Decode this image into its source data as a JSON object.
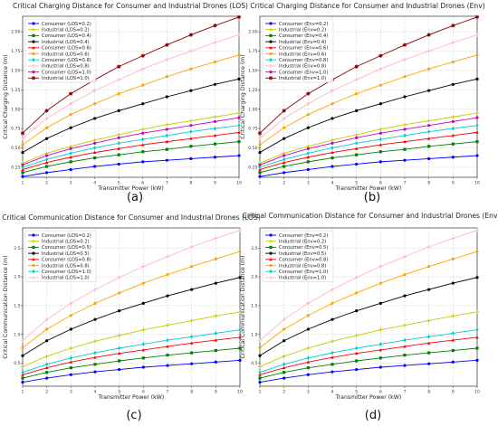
{
  "chart_data": [
    {
      "type": "line",
      "subfigure_label": "(a)",
      "title": "Critical Charging Distance for Consumer and Industrial Drones (LOS)",
      "xlabel": "Transmitter Power (kW)",
      "ylabel": "Critical Charging Distance (m)",
      "xlim": [
        1,
        10
      ],
      "ylim": [
        0.12,
        2.2
      ],
      "xticks": [
        "1",
        "2",
        "3",
        "4",
        "5",
        "6",
        "7",
        "8",
        "9",
        "10"
      ],
      "yticks": [
        "0.25",
        "0.50",
        "0.75",
        "1.00",
        "1.25",
        "1.50",
        "1.75",
        "2.00"
      ],
      "grid": true,
      "legend_position": "top-left",
      "x": [
        1,
        2,
        3,
        4,
        5,
        6,
        7,
        8,
        9,
        10
      ],
      "series": [
        {
          "name": "Consumer (LOS=0.2)",
          "color": "#0000ff",
          "marker": "circle",
          "values": [
            0.13,
            0.18,
            0.22,
            0.26,
            0.29,
            0.32,
            0.34,
            0.36,
            0.38,
            0.4
          ]
        },
        {
          "name": "Industrial (LOS=0.2)",
          "color": "#c8c800",
          "marker": "plus",
          "values": [
            0.3,
            0.43,
            0.52,
            0.6,
            0.67,
            0.74,
            0.8,
            0.85,
            0.9,
            0.95
          ]
        },
        {
          "name": "Consumer (LOS=0.4)",
          "color": "#008000",
          "marker": "square",
          "values": [
            0.18,
            0.26,
            0.32,
            0.37,
            0.41,
            0.45,
            0.48,
            0.52,
            0.55,
            0.58
          ]
        },
        {
          "name": "Industrial (LOS=0.4)",
          "color": "#000000",
          "marker": "circle",
          "values": [
            0.44,
            0.62,
            0.76,
            0.88,
            0.98,
            1.07,
            1.16,
            1.24,
            1.32,
            1.39
          ]
        },
        {
          "name": "Consumer (LOS=0.6)",
          "color": "#ff0000",
          "marker": "triangle",
          "values": [
            0.22,
            0.31,
            0.38,
            0.44,
            0.49,
            0.54,
            0.58,
            0.62,
            0.66,
            0.7
          ]
        },
        {
          "name": "Industrial (LOS=0.6)",
          "color": "#ffa500",
          "marker": "circle",
          "values": [
            0.54,
            0.76,
            0.93,
            1.07,
            1.2,
            1.31,
            1.42,
            1.52,
            1.61,
            1.7
          ]
        },
        {
          "name": "Consumer (LOS=0.8)",
          "color": "#00cccc",
          "marker": "diamond",
          "values": [
            0.25,
            0.35,
            0.43,
            0.5,
            0.56,
            0.61,
            0.66,
            0.71,
            0.75,
            0.79
          ]
        },
        {
          "name": "Industrial (LOS=0.8)",
          "color": "#ffb6c1",
          "marker": "plus",
          "values": [
            0.62,
            0.88,
            1.07,
            1.24,
            1.38,
            1.52,
            1.64,
            1.75,
            1.86,
            1.96
          ]
        },
        {
          "name": "Consumer (LOS=1.0)",
          "color": "#cc00cc",
          "marker": "circle",
          "values": [
            0.28,
            0.4,
            0.49,
            0.56,
            0.63,
            0.69,
            0.74,
            0.79,
            0.84,
            0.89
          ]
        },
        {
          "name": "Industrial (LOS=1.0)",
          "color": "#8b0000",
          "marker": "star",
          "values": [
            0.69,
            0.98,
            1.2,
            1.38,
            1.55,
            1.69,
            1.83,
            1.96,
            2.08,
            2.19
          ]
        }
      ]
    },
    {
      "type": "line",
      "subfigure_label": "(b)",
      "title": "Critical Charging Distance for Consumer and Industrial Drones (Env)",
      "xlabel": "Transmitter Power (kW)",
      "ylabel": "Critical Charging Distance (m)",
      "xlim": [
        1,
        10
      ],
      "ylim": [
        0.12,
        2.2
      ],
      "xticks": [
        "1",
        "2",
        "3",
        "4",
        "5",
        "6",
        "7",
        "8",
        "9",
        "10"
      ],
      "yticks": [
        "0.25",
        "0.50",
        "0.75",
        "1.00",
        "1.25",
        "1.50",
        "1.75",
        "2.00"
      ],
      "grid": true,
      "legend_position": "top-left",
      "x": [
        1,
        2,
        3,
        4,
        5,
        6,
        7,
        8,
        9,
        10
      ],
      "series": [
        {
          "name": "Consumer (Env=0.2)",
          "color": "#0000ff",
          "marker": "circle",
          "values": [
            0.13,
            0.18,
            0.22,
            0.26,
            0.29,
            0.32,
            0.34,
            0.36,
            0.38,
            0.4
          ]
        },
        {
          "name": "Industrial (Env=0.2)",
          "color": "#c8c800",
          "marker": "plus",
          "values": [
            0.3,
            0.43,
            0.52,
            0.6,
            0.67,
            0.74,
            0.8,
            0.85,
            0.9,
            0.95
          ]
        },
        {
          "name": "Consumer (Env=0.4)",
          "color": "#008000",
          "marker": "square",
          "values": [
            0.18,
            0.26,
            0.32,
            0.37,
            0.41,
            0.45,
            0.48,
            0.52,
            0.55,
            0.58
          ]
        },
        {
          "name": "Industrial (Env=0.4)",
          "color": "#000000",
          "marker": "circle",
          "values": [
            0.44,
            0.62,
            0.76,
            0.88,
            0.98,
            1.07,
            1.16,
            1.24,
            1.32,
            1.39
          ]
        },
        {
          "name": "Consumer (Env=0.6)",
          "color": "#ff0000",
          "marker": "triangle",
          "values": [
            0.22,
            0.31,
            0.38,
            0.44,
            0.49,
            0.54,
            0.58,
            0.62,
            0.66,
            0.7
          ]
        },
        {
          "name": "Industrial (Env=0.6)",
          "color": "#ffa500",
          "marker": "circle",
          "values": [
            0.54,
            0.76,
            0.93,
            1.07,
            1.2,
            1.31,
            1.42,
            1.52,
            1.61,
            1.7
          ]
        },
        {
          "name": "Consumer (Env=0.8)",
          "color": "#00cccc",
          "marker": "diamond",
          "values": [
            0.25,
            0.35,
            0.43,
            0.5,
            0.56,
            0.61,
            0.66,
            0.71,
            0.75,
            0.79
          ]
        },
        {
          "name": "Industrial (Env=0.8)",
          "color": "#ffb6c1",
          "marker": "plus",
          "values": [
            0.62,
            0.88,
            1.07,
            1.24,
            1.38,
            1.52,
            1.64,
            1.75,
            1.86,
            1.96
          ]
        },
        {
          "name": "Consumer (Env=1.0)",
          "color": "#cc00cc",
          "marker": "circle",
          "values": [
            0.28,
            0.4,
            0.49,
            0.56,
            0.63,
            0.69,
            0.74,
            0.79,
            0.84,
            0.89
          ]
        },
        {
          "name": "Industrial (Env=1.0)",
          "color": "#8b0000",
          "marker": "star",
          "values": [
            0.69,
            0.98,
            1.2,
            1.38,
            1.55,
            1.69,
            1.83,
            1.96,
            2.08,
            2.19
          ]
        }
      ]
    },
    {
      "type": "line",
      "subfigure_label": "(c)",
      "title": "Critical Communication Distance for Consumer and Industrial Drones (LOS)",
      "xlabel": "Transmitter Power (kW)",
      "ylabel": "Critical Communication Distance (m)",
      "xlim": [
        1,
        10
      ],
      "ylim": [
        0.1,
        2.85
      ],
      "xticks": [
        "1",
        "2",
        "3",
        "4",
        "5",
        "6",
        "7",
        "8",
        "9",
        "10"
      ],
      "yticks": [
        "0.5",
        "1.0",
        "1.5",
        "2.0",
        "2.5"
      ],
      "grid": true,
      "legend_position": "top-left",
      "x": [
        1,
        2,
        3,
        4,
        5,
        6,
        7,
        8,
        9,
        10
      ],
      "series": [
        {
          "name": "Consumer (LOS=0.2)",
          "color": "#0000ff",
          "marker": "circle",
          "values": [
            0.17,
            0.24,
            0.3,
            0.35,
            0.39,
            0.43,
            0.46,
            0.49,
            0.52,
            0.55
          ]
        },
        {
          "name": "Industrial (LOS=0.2)",
          "color": "#c8c800",
          "marker": "plus",
          "values": [
            0.44,
            0.62,
            0.76,
            0.88,
            0.98,
            1.08,
            1.16,
            1.24,
            1.32,
            1.39
          ]
        },
        {
          "name": "Consumer (LOS=0.5)",
          "color": "#008000",
          "marker": "square",
          "values": [
            0.24,
            0.34,
            0.42,
            0.48,
            0.54,
            0.59,
            0.64,
            0.68,
            0.72,
            0.76
          ]
        },
        {
          "name": "Industrial (LOS=0.5)",
          "color": "#000000",
          "marker": "circle",
          "values": [
            0.63,
            0.89,
            1.09,
            1.26,
            1.41,
            1.54,
            1.67,
            1.78,
            1.89,
            1.99
          ]
        },
        {
          "name": "Consumer (LOS=0.8)",
          "color": "#ff0000",
          "marker": "triangle",
          "values": [
            0.3,
            0.42,
            0.52,
            0.6,
            0.67,
            0.73,
            0.79,
            0.85,
            0.9,
            0.95
          ]
        },
        {
          "name": "Industrial (LOS=0.8)",
          "color": "#ffa500",
          "marker": "circle",
          "values": [
            0.77,
            1.09,
            1.33,
            1.54,
            1.72,
            1.89,
            2.04,
            2.18,
            2.31,
            2.44
          ]
        },
        {
          "name": "Consumer (LOS=1.0)",
          "color": "#00cccc",
          "marker": "diamond",
          "values": [
            0.34,
            0.48,
            0.59,
            0.68,
            0.76,
            0.83,
            0.9,
            0.96,
            1.02,
            1.08
          ]
        },
        {
          "name": "Industrial (LOS=1.0)",
          "color": "#ffb6c1",
          "marker": "plus",
          "values": [
            0.89,
            1.26,
            1.54,
            1.78,
            1.99,
            2.18,
            2.35,
            2.52,
            2.67,
            2.81
          ]
        }
      ]
    },
    {
      "type": "line",
      "subfigure_label": "(d)",
      "title": "Critical Communication Distance for Consumer and Industrial Drones (Env)",
      "xlabel": "Transmitter Power (kW)",
      "ylabel": "Critical Communication Distance (m)",
      "xlim": [
        1,
        10
      ],
      "ylim": [
        0.1,
        2.85
      ],
      "xticks": [
        "1",
        "2",
        "3",
        "4",
        "5",
        "6",
        "7",
        "8",
        "9",
        "10"
      ],
      "yticks": [
        "0.5",
        "1.0",
        "1.5",
        "2.0",
        "2.5"
      ],
      "grid": true,
      "legend_position": "top-left",
      "x": [
        1,
        2,
        3,
        4,
        5,
        6,
        7,
        8,
        9,
        10
      ],
      "series": [
        {
          "name": "Consumer (Env=0.2)",
          "color": "#0000ff",
          "marker": "circle",
          "values": [
            0.17,
            0.24,
            0.3,
            0.35,
            0.39,
            0.43,
            0.46,
            0.49,
            0.52,
            0.55
          ]
        },
        {
          "name": "Industrial (Env=0.2)",
          "color": "#c8c800",
          "marker": "plus",
          "values": [
            0.44,
            0.62,
            0.76,
            0.88,
            0.98,
            1.08,
            1.16,
            1.24,
            1.32,
            1.39
          ]
        },
        {
          "name": "Consumer (Env=0.5)",
          "color": "#008000",
          "marker": "square",
          "values": [
            0.24,
            0.34,
            0.42,
            0.48,
            0.54,
            0.59,
            0.64,
            0.68,
            0.72,
            0.76
          ]
        },
        {
          "name": "Industrial (Env=0.5)",
          "color": "#000000",
          "marker": "circle",
          "values": [
            0.63,
            0.89,
            1.09,
            1.26,
            1.41,
            1.54,
            1.67,
            1.78,
            1.89,
            1.99
          ]
        },
        {
          "name": "Consumer (Env=0.8)",
          "color": "#ff0000",
          "marker": "triangle",
          "values": [
            0.3,
            0.42,
            0.52,
            0.6,
            0.67,
            0.73,
            0.79,
            0.85,
            0.9,
            0.95
          ]
        },
        {
          "name": "Industrial (Env=0.8)",
          "color": "#ffa500",
          "marker": "circle",
          "values": [
            0.77,
            1.09,
            1.33,
            1.54,
            1.72,
            1.89,
            2.04,
            2.18,
            2.31,
            2.44
          ]
        },
        {
          "name": "Consumer (Env=1.0)",
          "color": "#00cccc",
          "marker": "diamond",
          "values": [
            0.34,
            0.48,
            0.59,
            0.68,
            0.76,
            0.83,
            0.9,
            0.96,
            1.02,
            1.08
          ]
        },
        {
          "name": "Industrial (Env=1.0)",
          "color": "#ffb6c1",
          "marker": "plus",
          "values": [
            0.89,
            1.26,
            1.54,
            1.78,
            1.99,
            2.18,
            2.35,
            2.52,
            2.67,
            2.81
          ]
        }
      ]
    }
  ]
}
